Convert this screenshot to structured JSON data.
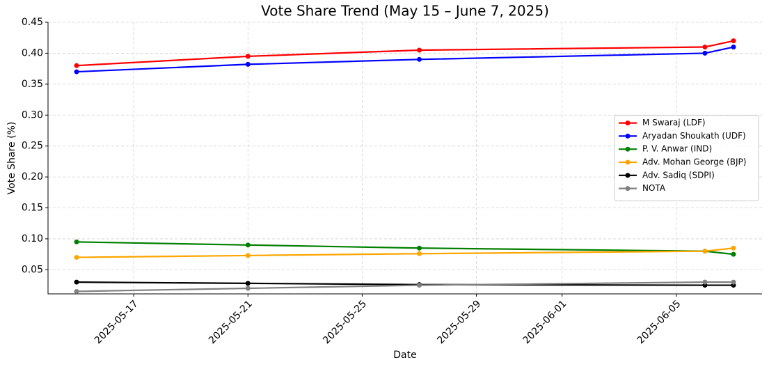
{
  "chart_data": {
    "type": "line",
    "title": "Vote Share Trend (May 15 – June 7, 2025)",
    "x_label": "Date",
    "y_label": "Vote Share (%)",
    "x": [
      "2025-05-15",
      "2025-05-21",
      "2025-05-27",
      "2025-06-06",
      "2025-06-07"
    ],
    "series": [
      {
        "name": "M Swaraj (LDF)",
        "color": "#ff0000",
        "values": [
          0.38,
          0.395,
          0.405,
          0.41,
          0.42
        ]
      },
      {
        "name": "Aryadan Shoukath (UDF)",
        "color": "#0000ff",
        "values": [
          0.37,
          0.382,
          0.39,
          0.4,
          0.41
        ]
      },
      {
        "name": "P. V. Anwar (IND)",
        "color": "#008000",
        "values": [
          0.095,
          0.09,
          0.085,
          0.08,
          0.075
        ]
      },
      {
        "name": "Adv. Mohan George (BJP)",
        "color": "#ffa500",
        "values": [
          0.07,
          0.073,
          0.076,
          0.08,
          0.085
        ]
      },
      {
        "name": "Adv. Sadiq (SDPI)",
        "color": "#000000",
        "values": [
          0.03,
          0.028,
          0.026,
          0.025,
          0.025
        ]
      },
      {
        "name": "NOTA",
        "color": "#808080",
        "values": [
          0.015,
          0.02,
          0.025,
          0.03,
          0.03
        ]
      }
    ],
    "xlim": [
      "2025-05-14",
      "2025-06-08"
    ],
    "xticks": [
      "2025-05-17",
      "2025-05-21",
      "2025-05-25",
      "2025-05-29",
      "2025-06-01",
      "2025-06-05"
    ],
    "ylim": [
      0.011,
      0.45
    ],
    "yticks": [
      0.05,
      {
        "value": 0.1,
        "label": "0.10"
      },
      0.15,
      {
        "value": 0.2,
        "label": "0.20"
      },
      0.25,
      {
        "value": 0.3,
        "label": "0.30"
      },
      0.35,
      {
        "value": 0.4,
        "label": "0.40"
      },
      0.45
    ],
    "grid": true,
    "legend": "center right"
  }
}
